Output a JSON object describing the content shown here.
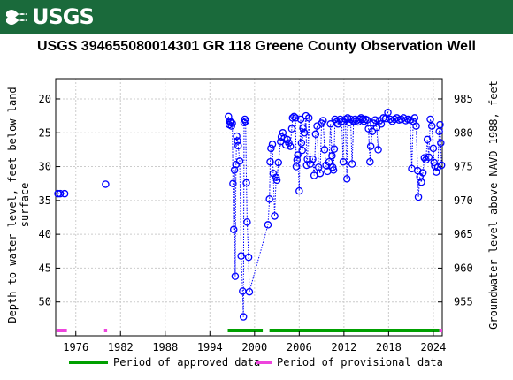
{
  "header": {
    "agency": "USGS",
    "logo_icon": "usgs-wave-logo-icon"
  },
  "chart_data": {
    "type": "scatter",
    "title": "USGS 394655080014301 GR   118 Greene County Observation Well",
    "ylabel_left": [
      "Depth to water level, feet below land",
      "surface"
    ],
    "ylabel_right": "Groundwater level above NAVD 1988, feet",
    "x_ticks": [
      "1976",
      "1982",
      "1988",
      "1994",
      "2000",
      "2006",
      "2012",
      "2018",
      "2024"
    ],
    "x_tick_values": [
      1976,
      1982,
      1988,
      1994,
      2000,
      2006,
      2012,
      2018,
      2024
    ],
    "xlim": [
      1973.3,
      2025.2
    ],
    "y_left_ticks": [
      20,
      25,
      30,
      35,
      40,
      45,
      50
    ],
    "y_left_lim": [
      17,
      55
    ],
    "y_left_inverted": true,
    "y_right_ticks": [
      985,
      980,
      975,
      970,
      965,
      960,
      955
    ],
    "y_right_offset": 1005,
    "series_color": "#0000ff",
    "points": [
      [
        1973.6,
        34.0
      ],
      [
        1973.9,
        34.0
      ],
      [
        1974.5,
        34.0
      ],
      [
        1980.0,
        32.6
      ],
      [
        1996.5,
        22.6
      ],
      [
        1996.6,
        23.8
      ],
      [
        1996.7,
        23.3
      ],
      [
        1996.8,
        23.5
      ],
      [
        1996.9,
        24.0
      ],
      [
        1997.0,
        23.6
      ],
      [
        1997.1,
        32.5
      ],
      [
        1997.2,
        39.3
      ],
      [
        1997.3,
        30.5
      ],
      [
        1997.4,
        46.2
      ],
      [
        1997.5,
        29.7
      ],
      [
        1997.6,
        25.5
      ],
      [
        1997.7,
        26.2
      ],
      [
        1997.8,
        26.9
      ],
      [
        1998.0,
        29.2
      ],
      [
        1998.2,
        43.2
      ],
      [
        1998.4,
        48.4
      ],
      [
        1998.5,
        52.2
      ],
      [
        1998.6,
        23.5
      ],
      [
        1998.7,
        23.0
      ],
      [
        1998.8,
        23.3
      ],
      [
        1998.9,
        32.4
      ],
      [
        1999.0,
        38.2
      ],
      [
        1999.2,
        43.4
      ],
      [
        1999.3,
        48.5
      ],
      [
        2001.8,
        38.6
      ],
      [
        2002.0,
        34.8
      ],
      [
        2002.1,
        29.3
      ],
      [
        2002.2,
        27.3
      ],
      [
        2002.4,
        26.7
      ],
      [
        2002.5,
        31.0
      ],
      [
        2002.7,
        37.3
      ],
      [
        2002.9,
        31.6
      ],
      [
        2003.0,
        32.0
      ],
      [
        2003.2,
        29.4
      ],
      [
        2003.5,
        26.3
      ],
      [
        2003.6,
        25.6
      ],
      [
        2003.8,
        25.0
      ],
      [
        2004.0,
        25.8
      ],
      [
        2004.2,
        26.8
      ],
      [
        2004.4,
        26.0
      ],
      [
        2004.6,
        26.5
      ],
      [
        2004.8,
        27.0
      ],
      [
        2005.0,
        24.4
      ],
      [
        2005.1,
        22.8
      ],
      [
        2005.3,
        22.6
      ],
      [
        2005.5,
        22.8
      ],
      [
        2005.6,
        30.0
      ],
      [
        2005.7,
        29.0
      ],
      [
        2005.8,
        28.3
      ],
      [
        2006.0,
        33.6
      ],
      [
        2006.2,
        23.0
      ],
      [
        2006.3,
        26.5
      ],
      [
        2006.4,
        27.6
      ],
      [
        2006.5,
        24.3
      ],
      [
        2006.7,
        25.0
      ],
      [
        2006.9,
        22.5
      ],
      [
        2007.0,
        29.8
      ],
      [
        2007.1,
        28.9
      ],
      [
        2007.3,
        22.8
      ],
      [
        2007.5,
        29.6
      ],
      [
        2007.8,
        28.9
      ],
      [
        2008.0,
        31.3
      ],
      [
        2008.2,
        25.2
      ],
      [
        2008.4,
        24.0
      ],
      [
        2008.6,
        30.1
      ],
      [
        2008.8,
        31.0
      ],
      [
        2009.0,
        23.6
      ],
      [
        2009.2,
        23.2
      ],
      [
        2009.4,
        27.5
      ],
      [
        2009.6,
        29.8
      ],
      [
        2009.8,
        30.7
      ],
      [
        2010.0,
        29.3
      ],
      [
        2010.2,
        23.7
      ],
      [
        2010.4,
        28.4
      ],
      [
        2010.5,
        30.1
      ],
      [
        2010.6,
        30.5
      ],
      [
        2010.7,
        27.4
      ],
      [
        2010.8,
        23.0
      ],
      [
        2011.0,
        23.4
      ],
      [
        2011.2,
        23.7
      ],
      [
        2011.5,
        23.0
      ],
      [
        2011.7,
        23.3
      ],
      [
        2011.9,
        29.3
      ],
      [
        2012.0,
        23.4
      ],
      [
        2012.2,
        23.0
      ],
      [
        2012.4,
        31.8
      ],
      [
        2012.5,
        22.8
      ],
      [
        2012.7,
        23.5
      ],
      [
        2012.9,
        23.0
      ],
      [
        2013.1,
        29.6
      ],
      [
        2013.3,
        23.3
      ],
      [
        2013.5,
        23.0
      ],
      [
        2013.7,
        23.2
      ],
      [
        2013.9,
        23.4
      ],
      [
        2014.1,
        23.0
      ],
      [
        2014.3,
        22.8
      ],
      [
        2014.5,
        23.0
      ],
      [
        2014.7,
        23.3
      ],
      [
        2014.9,
        23.0
      ],
      [
        2015.1,
        23.1
      ],
      [
        2015.3,
        24.4
      ],
      [
        2015.5,
        29.3
      ],
      [
        2015.6,
        27.0
      ],
      [
        2015.8,
        24.8
      ],
      [
        2016.0,
        23.6
      ],
      [
        2016.2,
        23.1
      ],
      [
        2016.4,
        24.2
      ],
      [
        2016.6,
        27.5
      ],
      [
        2016.8,
        23.2
      ],
      [
        2017.0,
        23.7
      ],
      [
        2017.3,
        22.8
      ],
      [
        2017.6,
        22.9
      ],
      [
        2017.9,
        22.0
      ],
      [
        2018.2,
        23.0
      ],
      [
        2018.5,
        23.3
      ],
      [
        2018.8,
        23.0
      ],
      [
        2019.1,
        22.8
      ],
      [
        2019.4,
        23.1
      ],
      [
        2019.7,
        23.0
      ],
      [
        2020.0,
        22.8
      ],
      [
        2020.3,
        23.2
      ],
      [
        2020.6,
        23.0
      ],
      [
        2020.9,
        23.1
      ],
      [
        2021.1,
        30.3
      ],
      [
        2021.3,
        23.3
      ],
      [
        2021.5,
        22.8
      ],
      [
        2021.7,
        24.0
      ],
      [
        2021.9,
        30.6
      ],
      [
        2022.0,
        34.5
      ],
      [
        2022.2,
        31.5
      ],
      [
        2022.4,
        32.3
      ],
      [
        2022.6,
        30.9
      ],
      [
        2022.8,
        28.7
      ],
      [
        2023.0,
        29.0
      ],
      [
        2023.2,
        26.0
      ],
      [
        2023.4,
        28.6
      ],
      [
        2023.6,
        23.0
      ],
      [
        2023.8,
        24.0
      ],
      [
        2024.0,
        27.3
      ],
      [
        2024.1,
        29.4
      ],
      [
        2024.2,
        29.9
      ],
      [
        2024.4,
        30.8
      ],
      [
        2024.6,
        30.1
      ],
      [
        2024.8,
        24.8
      ],
      [
        2024.9,
        23.8
      ],
      [
        2025.0,
        26.5
      ],
      [
        2025.1,
        29.8
      ]
    ],
    "approved_periods": [
      [
        1996.4,
        2001.1
      ],
      [
        2002.0,
        2024.8
      ]
    ],
    "provisional_periods": [
      [
        1973.4,
        1974.8
      ],
      [
        1979.8,
        1980.2
      ],
      [
        2024.8,
        2025.2
      ]
    ],
    "approved_color": "#00a000",
    "provisional_color": "#ee44dd",
    "legend": {
      "approved_label": "Period of approved data",
      "provisional_label": "Period of provisional data",
      "placement": "bottom"
    }
  }
}
